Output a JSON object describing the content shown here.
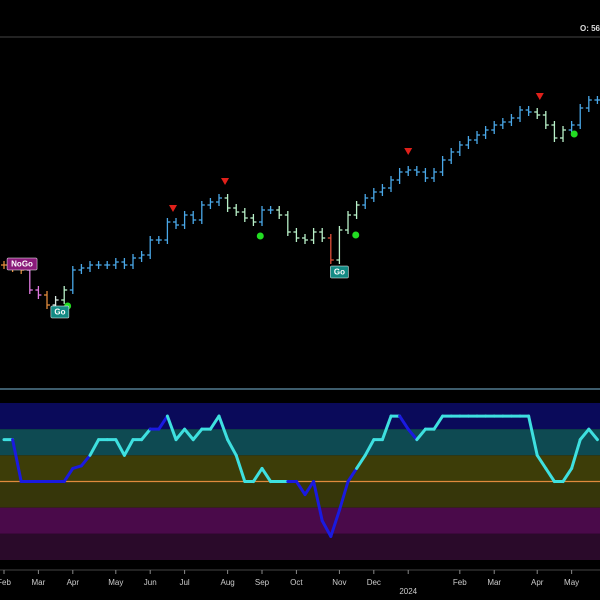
{
  "chart_data": [
    {
      "type": "ohlc",
      "text": "O: 56",
      "xlim": [
        -0.465,
        69.3
      ],
      "ylim": [
        0,
        340
      ],
      "x": [
        0,
        1,
        2,
        3,
        4,
        5,
        6,
        7,
        8,
        9,
        10,
        11,
        12,
        13,
        14,
        15,
        16,
        17,
        18,
        19,
        20,
        21,
        22,
        23,
        24,
        25,
        26,
        27,
        28,
        29,
        30,
        31,
        32,
        33,
        34,
        35,
        36,
        37,
        38,
        39,
        40,
        41,
        42,
        43,
        44,
        45,
        46,
        47,
        48,
        49,
        50,
        51,
        52,
        53,
        54,
        55,
        56,
        57,
        58,
        59,
        60,
        61,
        62,
        63,
        64,
        65,
        66,
        67,
        68,
        69
      ],
      "values": [
        115,
        112,
        110,
        90,
        85,
        75,
        80,
        90,
        110,
        112,
        115,
        115,
        115,
        118,
        115,
        122,
        125,
        140,
        140,
        158,
        155,
        165,
        160,
        175,
        178,
        182,
        172,
        168,
        162,
        158,
        170,
        170,
        165,
        148,
        142,
        140,
        148,
        142,
        120,
        150,
        165,
        175,
        182,
        188,
        192,
        200,
        208,
        210,
        208,
        202,
        208,
        220,
        228,
        235,
        240,
        245,
        250,
        255,
        258,
        262,
        270,
        268,
        265,
        255,
        242,
        250,
        255,
        272,
        280,
        280
      ],
      "colors": [
        "#e08a3c",
        "#e08a3c",
        "#e08a3c",
        "#e07ae0",
        "#e07ae0",
        "#e08a3c",
        "#d8e8e0",
        "#b8f0c8",
        "#4aa8e8",
        "#4aa8e8",
        "#4aa8e8",
        "#4aa8e8",
        "#4aa8e8",
        "#4aa8e8",
        "#4aa8e8",
        "#4aa8e8",
        "#4aa8e8",
        "#4aa8e8",
        "#4aa8e8",
        "#4aa8e8",
        "#4aa8e8",
        "#4aa8e8",
        "#4aa8e8",
        "#4aa8e8",
        "#4aa8e8",
        "#4aa8e8",
        "#b8f0c8",
        "#b8f0c8",
        "#b8f0c8",
        "#b8f0c8",
        "#4aa8e8",
        "#4aa8e8",
        "#b8f0c8",
        "#b8f0c8",
        "#b8f0c8",
        "#b8f0c8",
        "#b8f0c8",
        "#b8f0c8",
        "#e0503a",
        "#b8f0c8",
        "#b8f0c8",
        "#b8f0c8",
        "#4aa8e8",
        "#4aa8e8",
        "#4aa8e8",
        "#4aa8e8",
        "#4aa8e8",
        "#4aa8e8",
        "#4aa8e8",
        "#4aa8e8",
        "#4aa8e8",
        "#4aa8e8",
        "#4aa8e8",
        "#4aa8e8",
        "#4aa8e8",
        "#4aa8e8",
        "#4aa8e8",
        "#4aa8e8",
        "#4aa8e8",
        "#4aa8e8",
        "#4aa8e8",
        "#4aa8e8",
        "#b8f0c8",
        "#b8f0c8",
        "#b8f0c8",
        "#b8f0c8",
        "#4aa8e8",
        "#4aa8e8",
        "#4aa8e8",
        "#4aa8e8"
      ],
      "markers": [
        {
          "kind": "down",
          "x": 19.65,
          "y": 172,
          "color": "#e0201a"
        },
        {
          "kind": "down",
          "x": 25.7,
          "y": 199,
          "color": "#e0201a"
        },
        {
          "kind": "down",
          "x": 47,
          "y": 229,
          "color": "#e0201a"
        },
        {
          "kind": "down",
          "x": 62.3,
          "y": 284,
          "color": "#e0201a"
        },
        {
          "kind": "dot",
          "x": 7.4,
          "y": 74,
          "color": "#22dd22"
        },
        {
          "kind": "dot",
          "x": 29.8,
          "y": 144,
          "color": "#22dd22"
        },
        {
          "kind": "dot",
          "x": 40.9,
          "y": 145,
          "color": "#22dd22"
        },
        {
          "kind": "dot",
          "x": 66.3,
          "y": 246,
          "color": "#22dd22"
        }
      ],
      "annotations": [
        {
          "text": "NoGo",
          "x": 2.1,
          "y": 116,
          "color": "#8a1a7a"
        },
        {
          "text": "Go",
          "x": 6.5,
          "y": 68,
          "color": "#138a84"
        },
        {
          "text": "Go",
          "x": 39,
          "y": 108,
          "color": "#138a84"
        }
      ]
    },
    {
      "type": "oscillator",
      "xlim": [
        -0.465,
        69.3
      ],
      "ylim": [
        -3,
        3
      ],
      "x": [
        0,
        1,
        2,
        3,
        4,
        5,
        6,
        7,
        8,
        9,
        10,
        11,
        12,
        13,
        14,
        15,
        16,
        17,
        18,
        19,
        20,
        21,
        22,
        23,
        24,
        25,
        26,
        27,
        28,
        29,
        30,
        31,
        32,
        33,
        34,
        35,
        36,
        37,
        38,
        39,
        40,
        41,
        42,
        43,
        44,
        45,
        46,
        47,
        48,
        49,
        50,
        51,
        52,
        53,
        54,
        55,
        56,
        57,
        58,
        59,
        60,
        61,
        62,
        63,
        64,
        65,
        66,
        67,
        68,
        69
      ],
      "values": [
        1.6,
        1.6,
        0,
        0,
        0,
        0,
        0,
        0,
        0.5,
        0.6,
        1.0,
        1.6,
        1.6,
        1.6,
        1.0,
        1.6,
        1.6,
        2.0,
        2.0,
        2.5,
        1.6,
        2.0,
        1.6,
        2.0,
        2.0,
        2.5,
        1.6,
        1.0,
        0,
        0,
        0.5,
        0,
        0,
        0,
        0,
        -0.5,
        0,
        -1.5,
        -2.1,
        -1.1,
        0,
        0.5,
        1.0,
        1.6,
        1.6,
        2.5,
        2.5,
        2.0,
        1.6,
        2.0,
        2.0,
        2.5,
        2.5,
        2.5,
        2.5,
        2.5,
        2.5,
        2.5,
        2.5,
        2.5,
        2.5,
        2.5,
        1.0,
        0.5,
        0,
        0,
        0.5,
        1.6,
        2.0,
        1.6
      ],
      "colors": [
        "#3ee0e0",
        "#3ee0e0",
        "#1a1ae0",
        "#1a1ae0",
        "#1a1ae0",
        "#1a1ae0",
        "#1a1ae0",
        "#1a1ae0",
        "#1a1ae0",
        "#1a1ae0",
        "#1a1ae0",
        "#3ee0e0",
        "#3ee0e0",
        "#3ee0e0",
        "#3ee0e0",
        "#3ee0e0",
        "#3ee0e0",
        "#3ee0e0",
        "#1a1ae0",
        "#1a1ae0",
        "#3ee0e0",
        "#3ee0e0",
        "#3ee0e0",
        "#3ee0e0",
        "#3ee0e0",
        "#3ee0e0",
        "#3ee0e0",
        "#3ee0e0",
        "#3ee0e0",
        "#3ee0e0",
        "#3ee0e0",
        "#3ee0e0",
        "#3ee0e0",
        "#3ee0e0",
        "#1a1ae0",
        "#1a1ae0",
        "#1a1ae0",
        "#1a1ae0",
        "#1a1ae0",
        "#1a1ae0",
        "#1a1ae0",
        "#1a1ae0",
        "#3ee0e0",
        "#3ee0e0",
        "#3ee0e0",
        "#3ee0e0",
        "#3ee0e0",
        "#1a1ae0",
        "#1a1ae0",
        "#3ee0e0",
        "#3ee0e0",
        "#3ee0e0",
        "#3ee0e0",
        "#3ee0e0",
        "#3ee0e0",
        "#3ee0e0",
        "#3ee0e0",
        "#3ee0e0",
        "#3ee0e0",
        "#3ee0e0",
        "#3ee0e0",
        "#3ee0e0",
        "#3ee0e0",
        "#3ee0e0",
        "#3ee0e0",
        "#3ee0e0",
        "#3ee0e0",
        "#3ee0e0",
        "#3ee0e0",
        "#3ee0e0"
      ],
      "bands": [
        {
          "from": 2,
          "to": 3,
          "color": "#0a0a5a"
        },
        {
          "from": 1,
          "to": 2,
          "color": "#0e4a52"
        },
        {
          "from": 0,
          "to": 1,
          "color": "#3d3d08"
        },
        {
          "from": -1,
          "to": 0,
          "color": "#36360a"
        },
        {
          "from": -2,
          "to": -1,
          "color": "#4a0a4a"
        },
        {
          "from": -3,
          "to": -2,
          "color": "#2a0a2a"
        }
      ],
      "zero_line": {
        "value": 0,
        "color": "#e08a3c"
      },
      "xticks": [
        {
          "value": 0,
          "label": "Feb"
        },
        {
          "value": 4,
          "label": "Mar"
        },
        {
          "value": 8,
          "label": "Apr"
        },
        {
          "value": 13,
          "label": "May"
        },
        {
          "value": 17,
          "label": "Jun"
        },
        {
          "value": 21,
          "label": "Jul"
        },
        {
          "value": 26,
          "label": "Aug"
        },
        {
          "value": 30,
          "label": "Sep"
        },
        {
          "value": 34,
          "label": "Oct"
        },
        {
          "value": 39,
          "label": "Nov"
        },
        {
          "value": 43,
          "label": "Dec"
        },
        {
          "value": 53,
          "label": "Feb"
        },
        {
          "value": 57,
          "label": "Mar"
        },
        {
          "value": 62,
          "label": "Apr"
        },
        {
          "value": 66,
          "label": "May"
        }
      ],
      "year_tick": {
        "value": 47,
        "label": "2024"
      }
    }
  ]
}
